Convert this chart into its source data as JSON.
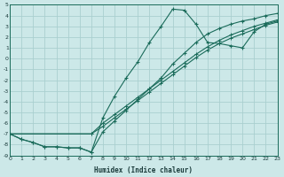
{
  "xlabel": "Humidex (Indice chaleur)",
  "bg_color": "#cce8e8",
  "grid_color": "#aacfcf",
  "line_color": "#1a6b5a",
  "x_min": 0,
  "x_max": 23,
  "y_min": -9,
  "y_max": 5,
  "xticks": [
    0,
    1,
    2,
    3,
    4,
    5,
    6,
    7,
    8,
    9,
    10,
    11,
    12,
    13,
    14,
    15,
    16,
    17,
    18,
    19,
    20,
    21,
    22,
    23
  ],
  "yticks": [
    5,
    4,
    3,
    2,
    1,
    0,
    -1,
    -2,
    -3,
    -4,
    -5,
    -6,
    -7,
    -8,
    -9
  ],
  "series1_x": [
    0,
    1,
    2,
    3,
    4,
    5,
    6,
    7,
    8,
    9,
    10,
    11,
    12,
    13,
    14,
    15,
    16,
    17,
    18,
    19,
    20,
    21,
    22,
    23
  ],
  "series1_y": [
    -7.0,
    -7.5,
    -7.8,
    -8.2,
    -8.2,
    -8.3,
    -8.3,
    -8.7,
    -5.5,
    -3.5,
    -1.8,
    -0.3,
    1.5,
    3.0,
    4.6,
    4.5,
    3.2,
    1.5,
    1.4,
    1.2,
    1.0,
    2.5,
    3.2,
    3.5
  ],
  "series2_x": [
    0,
    1,
    2,
    3,
    4,
    5,
    6,
    7,
    8,
    9,
    10,
    11,
    12,
    13,
    14,
    15,
    16,
    17,
    18,
    19,
    20,
    21,
    22,
    23
  ],
  "series2_y": [
    -7.0,
    -7.5,
    -7.8,
    -8.2,
    -8.2,
    -8.3,
    -8.3,
    -8.7,
    -6.8,
    -5.8,
    -4.8,
    -3.8,
    -2.8,
    -1.8,
    -0.5,
    0.5,
    1.5,
    2.3,
    2.8,
    3.2,
    3.5,
    3.7,
    4.0,
    4.2
  ],
  "series3_x": [
    0,
    7,
    8,
    9,
    10,
    11,
    12,
    13,
    14,
    15,
    16,
    17,
    18,
    19,
    20,
    21,
    22,
    23
  ],
  "series3_y": [
    -7.0,
    -7.0,
    -6.3,
    -5.5,
    -4.7,
    -3.9,
    -3.1,
    -2.3,
    -1.5,
    -0.7,
    0.1,
    0.8,
    1.4,
    1.9,
    2.3,
    2.7,
    3.1,
    3.4
  ],
  "series4_x": [
    0,
    7,
    8,
    9,
    10,
    11,
    12,
    13,
    14,
    15,
    16,
    17,
    18,
    19,
    20,
    21,
    22,
    23
  ],
  "series4_y": [
    -7.0,
    -7.0,
    -6.0,
    -5.2,
    -4.4,
    -3.6,
    -2.8,
    -2.0,
    -1.2,
    -0.4,
    0.4,
    1.1,
    1.7,
    2.2,
    2.6,
    3.0,
    3.3,
    3.6
  ]
}
